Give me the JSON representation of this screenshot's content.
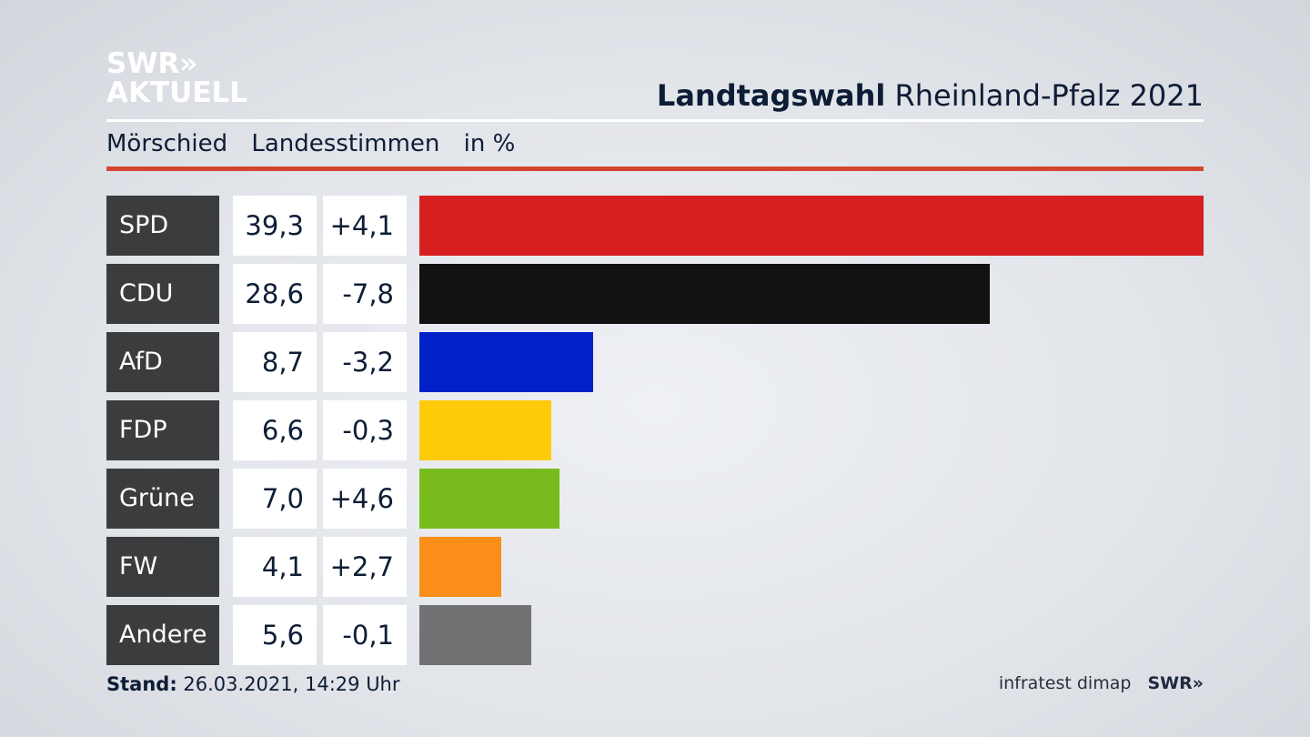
{
  "logo": {
    "line1": "SWR»",
    "line2": "AKTUELL"
  },
  "header": {
    "title_bold": "Landtagswahl",
    "title_rest": "Rheinland-Pfalz 2021"
  },
  "subheader": {
    "place": "Mörschied",
    "type": "Landesstimmen",
    "unit": "in %"
  },
  "footer": {
    "stand_label": "Stand:",
    "stand_value": "26.03.2021, 14:29 Uhr",
    "source": "infratest dimap",
    "brand": "SWR»"
  },
  "chart_data": {
    "type": "bar",
    "categories": [
      "SPD",
      "CDU",
      "AfD",
      "FDP",
      "Grüne",
      "FW",
      "Andere"
    ],
    "values": [
      39.3,
      28.6,
      8.7,
      6.6,
      7.0,
      4.1,
      5.6
    ],
    "value_labels": [
      "39,3",
      "28,6",
      "8,7",
      "6,6",
      "7,0",
      "4,1",
      "5,6"
    ],
    "diff_labels": [
      "+4,1",
      "-7,8",
      "-3,2",
      "-0,3",
      "+4,6",
      "+2,7",
      "-0,1"
    ],
    "colors": [
      "#d71f20",
      "#121212",
      "#0021c8",
      "#fdcb0a",
      "#78bb1d",
      "#fb8d19",
      "#727274"
    ],
    "title": "Landtagswahl Rheinland-Pfalz 2021",
    "xlim": [
      0,
      39.3
    ],
    "orientation": "horizontal"
  }
}
